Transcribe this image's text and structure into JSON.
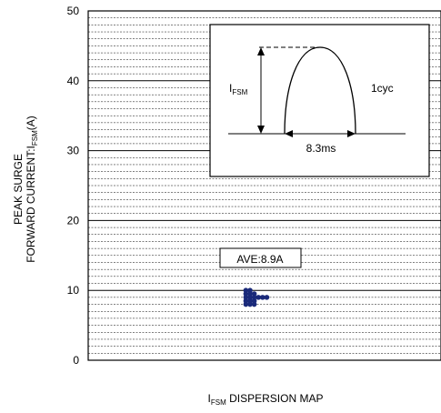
{
  "chart_data": {
    "type": "scatter",
    "title": "",
    "xlabel": {
      "main": "I",
      "sub": "FSM",
      "rest": " DISPERSION MAP"
    },
    "ylabel": {
      "line1": "PEAK SURGE",
      "line2_pre": "FORWARD CURRENT:I",
      "line2_sub": "FSM",
      "line2_post": "(A)"
    },
    "ylim": [
      0,
      50
    ],
    "yticks": [
      "0",
      "10",
      "20",
      "30",
      "40",
      "50"
    ],
    "major_grid_step": 10,
    "minor_grid_step": 1,
    "grid": true,
    "points_color": "#1a2a7a",
    "points": [
      {
        "y": 8.0
      },
      {
        "y": 8.0
      },
      {
        "y": 8.0
      },
      {
        "y": 8.5
      },
      {
        "y": 8.5
      },
      {
        "y": 8.5
      },
      {
        "y": 9.0
      },
      {
        "y": 9.0
      },
      {
        "y": 9.0
      },
      {
        "y": 9.0
      },
      {
        "y": 9.0
      },
      {
        "y": 9.0
      },
      {
        "y": 9.5
      },
      {
        "y": 9.5
      },
      {
        "y": 9.5
      },
      {
        "y": 10.0
      },
      {
        "y": 10.0
      }
    ],
    "average": {
      "label": "AVE:8.9A",
      "value": 8.9
    },
    "inset": {
      "amplitude_label": {
        "main": "I",
        "sub": "FSM"
      },
      "duration_label": "8.3ms",
      "cycle_label": "1cyc"
    }
  }
}
